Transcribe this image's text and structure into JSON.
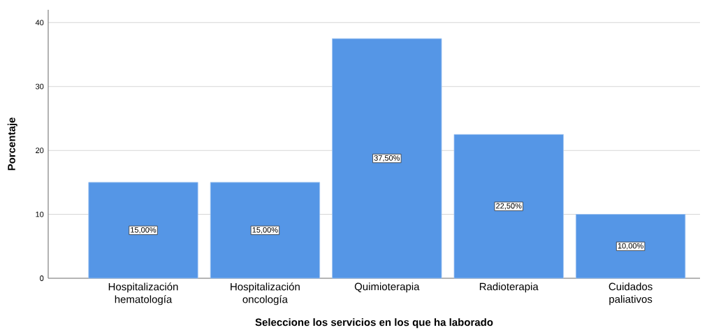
{
  "chart_data": {
    "type": "bar",
    "xlabel": "Seleccione los servicios en los que ha laborado",
    "ylabel": "Porcentaje",
    "categories": [
      "Hospitalización hematología",
      "Hospitalización oncología",
      "Quimioterapia",
      "Radioterapia",
      "Cuidados paliativos"
    ],
    "values": [
      15,
      15,
      37.5,
      22.5,
      10
    ],
    "color": "#5596e6",
    "value_labels": [
      "15,00%",
      "15,00%",
      "37,50%",
      "22,50%",
      "10,00%"
    ],
    "ylim": [
      0,
      42
    ],
    "yticks": [
      0,
      10,
      20,
      30,
      40
    ],
    "grid": "y"
  }
}
